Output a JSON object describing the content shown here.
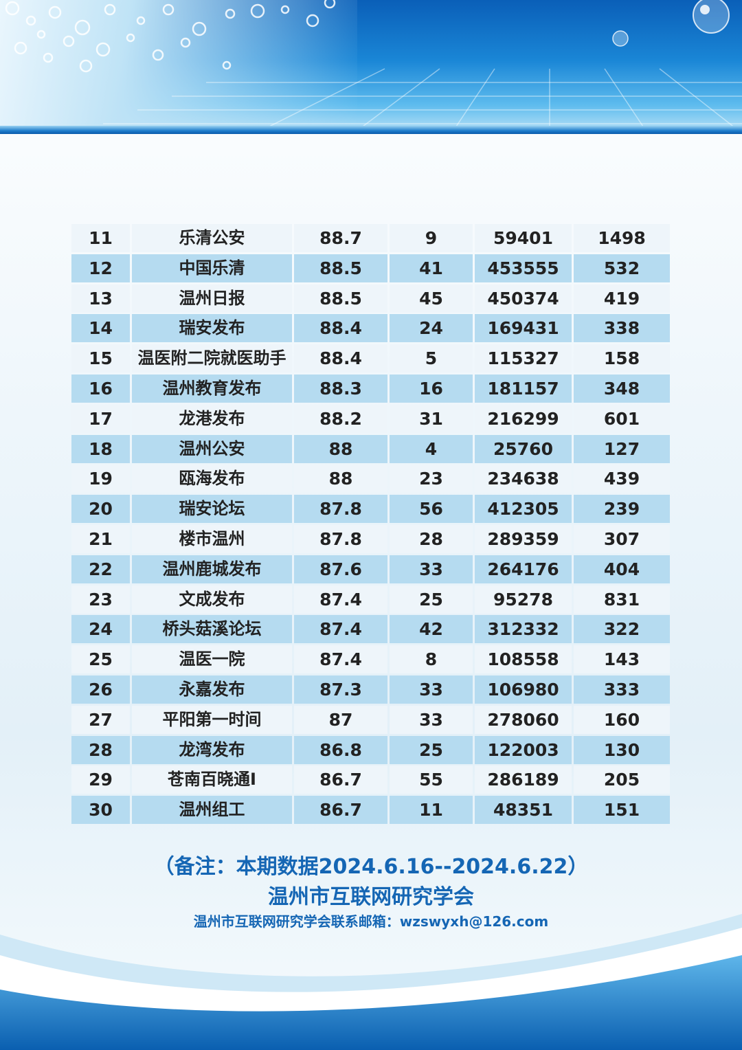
{
  "colors": {
    "header_blue": "#1a86d6",
    "row_light": "#eef5fa",
    "row_blue": "#b5dbf0",
    "text_dark": "#222222",
    "note_blue": "#1566b4"
  },
  "table": {
    "rows": [
      [
        "11",
        "乐清公安",
        "88.7",
        "9",
        "59401",
        "1498"
      ],
      [
        "12",
        "中国乐清",
        "88.5",
        "41",
        "453555",
        "532"
      ],
      [
        "13",
        "温州日报",
        "88.5",
        "45",
        "450374",
        "419"
      ],
      [
        "14",
        "瑞安发布",
        "88.4",
        "24",
        "169431",
        "338"
      ],
      [
        "15",
        "温医附二院就医助手",
        "88.4",
        "5",
        "115327",
        "158"
      ],
      [
        "16",
        "温州教育发布",
        "88.3",
        "16",
        "181157",
        "348"
      ],
      [
        "17",
        "龙港发布",
        "88.2",
        "31",
        "216299",
        "601"
      ],
      [
        "18",
        "温州公安",
        "88",
        "4",
        "25760",
        "127"
      ],
      [
        "19",
        "瓯海发布",
        "88",
        "23",
        "234638",
        "439"
      ],
      [
        "20",
        "瑞安论坛",
        "87.8",
        "56",
        "412305",
        "239"
      ],
      [
        "21",
        "楼市温州",
        "87.8",
        "28",
        "289359",
        "307"
      ],
      [
        "22",
        "温州鹿城发布",
        "87.6",
        "33",
        "264176",
        "404"
      ],
      [
        "23",
        "文成发布",
        "87.4",
        "25",
        "95278",
        "831"
      ],
      [
        "24",
        "桥头菇溪论坛",
        "87.4",
        "42",
        "312332",
        "322"
      ],
      [
        "25",
        "温医一院",
        "87.4",
        "8",
        "108558",
        "143"
      ],
      [
        "26",
        "永嘉发布",
        "87.3",
        "33",
        "106980",
        "333"
      ],
      [
        "27",
        "平阳第一时间",
        "87",
        "33",
        "278060",
        "160"
      ],
      [
        "28",
        "龙湾发布",
        "86.8",
        "25",
        "122003",
        "130"
      ],
      [
        "29",
        "苍南百晓通I",
        "86.7",
        "55",
        "286189",
        "205"
      ],
      [
        "30",
        "温州组工",
        "86.7",
        "11",
        "48351",
        "151"
      ]
    ]
  },
  "footer": {
    "note": "（备注：本期数据2024.6.16--2024.6.22）",
    "org": "温州市互联网研究学会",
    "contact": "温州市互联网研究学会联系邮箱：wzswyxh@126.com"
  }
}
